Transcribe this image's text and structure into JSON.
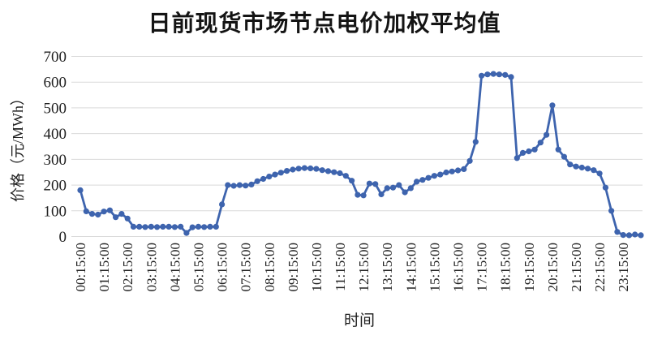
{
  "chart_data": {
    "type": "line",
    "title": "日前现货市场节点电价加权平均值",
    "xlabel": "时间",
    "ylabel": "价格（元/MWh）",
    "ylim": [
      0,
      700
    ],
    "yticks": [
      0,
      100,
      200,
      300,
      400,
      500,
      600,
      700
    ],
    "x_tick_labels": [
      "00:15:00",
      "01:15:00",
      "02:15:00",
      "03:15:00",
      "04:15:00",
      "05:15:00",
      "06:15:00",
      "07:15:00",
      "08:15:00",
      "09:15:00",
      "10:15:00",
      "11:15:00",
      "12:15:00",
      "13:15:00",
      "14:15:00",
      "15:15:00",
      "16:15:00",
      "17:15:00",
      "18:15:00",
      "19:15:00",
      "20:15:00",
      "21:15:00",
      "22:15:00",
      "23:15:00"
    ],
    "points_per_label": 4,
    "grid": "horizontal",
    "legend_position": "none",
    "line_color": "#3E64AE",
    "marker": "circle",
    "grid_color": "#D9D9D9",
    "text_color": "#1F1F1F",
    "values": [
      180,
      98,
      88,
      85,
      97,
      102,
      75,
      88,
      70,
      38,
      38,
      37,
      38,
      37,
      38,
      38,
      37,
      38,
      14,
      36,
      38,
      37,
      38,
      38,
      125,
      200,
      197,
      200,
      198,
      202,
      215,
      224,
      233,
      241,
      248,
      255,
      260,
      264,
      266,
      265,
      263,
      258,
      254,
      250,
      246,
      236,
      217,
      162,
      160,
      206,
      204,
      164,
      188,
      190,
      200,
      172,
      188,
      213,
      220,
      228,
      236,
      241,
      249,
      253,
      257,
      262,
      294,
      368,
      625,
      630,
      632,
      630,
      628,
      620,
      305,
      325,
      331,
      338,
      365,
      395,
      510,
      338,
      310,
      280,
      272,
      268,
      264,
      258,
      245,
      190,
      100,
      18,
      6,
      5,
      8,
      5
    ]
  }
}
